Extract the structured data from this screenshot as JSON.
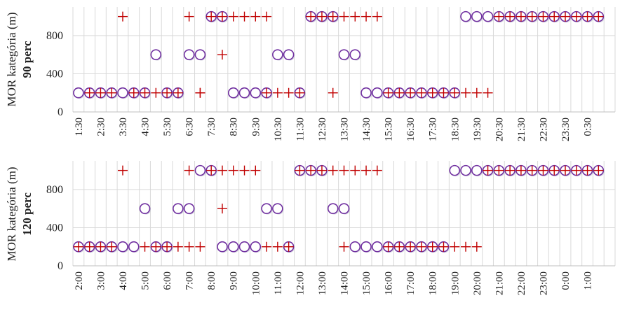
{
  "chart_data": [
    {
      "type": "scatter",
      "ylabel": "MOR kategória (m)",
      "ylabel2": "90 perc",
      "ylim": [
        0,
        1100
      ],
      "yticks": [
        0,
        400,
        800
      ],
      "grid": true,
      "xtick_labels": [
        "1:30",
        "2:30",
        "3:30",
        "4:30",
        "5:30",
        "6:30",
        "7:30",
        "8:30",
        "9:30",
        "10:30",
        "11:30",
        "12:30",
        "13:30",
        "14:30",
        "15:30",
        "16:30",
        "17:30",
        "18:30",
        "19:30",
        "20:30",
        "21:30",
        "22:30",
        "23:30",
        "0:30"
      ],
      "x_start": "1:30",
      "x_step_minutes": 30,
      "series": [
        {
          "marker": "circle",
          "color": "#7030a0",
          "x": [
            "1:30",
            "2:00",
            "2:30",
            "3:00",
            "3:30",
            "4:00",
            "4:30",
            "5:00",
            "5:30",
            "6:00",
            "6:30",
            "7:00",
            "7:30",
            "8:00",
            "8:30",
            "9:00",
            "9:30",
            "10:00",
            "10:30",
            "11:00",
            "11:30",
            "12:00",
            "12:30",
            "13:00",
            "13:30",
            "14:00",
            "14:30",
            "15:00",
            "15:30",
            "16:00",
            "16:30",
            "17:00",
            "17:30",
            "18:00",
            "18:30",
            "19:00",
            "19:30",
            "20:00",
            "20:30",
            "21:00",
            "21:30",
            "22:00",
            "22:30",
            "23:00",
            "23:30",
            "0:00",
            "0:30",
            "1:00"
          ],
          "y": [
            200,
            200,
            200,
            200,
            200,
            200,
            200,
            600,
            200,
            200,
            600,
            600,
            1000,
            1000,
            200,
            200,
            200,
            200,
            600,
            600,
            200,
            1000,
            1000,
            1000,
            600,
            600,
            200,
            200,
            200,
            200,
            200,
            200,
            200,
            200,
            200,
            1000,
            1000,
            1000,
            1000,
            1000,
            1000,
            1000,
            1000,
            1000,
            1000,
            1000,
            1000,
            1000
          ]
        },
        {
          "marker": "cross",
          "color": "#c00000",
          "x": [
            "2:00",
            "2:30",
            "3:00",
            "3:30",
            "4:00",
            "4:30",
            "5:00",
            "5:30",
            "6:00",
            "6:30",
            "7:00",
            "7:00",
            "7:30",
            "8:00",
            "8:00",
            "8:30",
            "9:00",
            "9:30",
            "10:00",
            "10:00",
            "10:30",
            "11:00",
            "11:30",
            "12:00",
            "12:30",
            "13:00",
            "13:00",
            "13:30",
            "14:00",
            "14:30",
            "15:00",
            "15:30",
            "16:00",
            "16:30",
            "17:00",
            "17:30",
            "18:00",
            "18:30",
            "19:00",
            "19:30",
            "20:00",
            "20:30",
            "21:00",
            "21:30",
            "22:00",
            "22:30",
            "23:00",
            "23:30",
            "0:00",
            "0:30",
            "1:00"
          ],
          "y": [
            200,
            200,
            200,
            1000,
            200,
            200,
            200,
            200,
            200,
            1000,
            200,
            200,
            1000,
            600,
            1000,
            1000,
            1000,
            1000,
            1000,
            200,
            200,
            200,
            200,
            1000,
            1000,
            200,
            1000,
            1000,
            1000,
            1000,
            1000,
            200,
            200,
            200,
            200,
            200,
            200,
            200,
            200,
            200,
            200,
            1000,
            1000,
            1000,
            1000,
            1000,
            1000,
            1000,
            1000,
            1000,
            1000
          ]
        }
      ]
    },
    {
      "type": "scatter",
      "ylabel": "MOR kategória (m)",
      "ylabel2": "120 perc",
      "ylim": [
        0,
        1100
      ],
      "yticks": [
        0,
        400,
        800
      ],
      "grid": true,
      "xtick_labels": [
        "2:00",
        "3:00",
        "4:00",
        "5:00",
        "6:00",
        "7:00",
        "8:00",
        "9:00",
        "10:00",
        "11:00",
        "12:00",
        "13:00",
        "14:00",
        "15:00",
        "16:00",
        "17:00",
        "18:00",
        "19:00",
        "20:00",
        "21:00",
        "22:00",
        "23:00",
        "0:00",
        "1:00"
      ],
      "x_start": "2:00",
      "x_step_minutes": 30,
      "series": [
        {
          "marker": "circle",
          "color": "#7030a0",
          "x": [
            "2:00",
            "2:30",
            "3:00",
            "3:30",
            "4:00",
            "4:30",
            "5:00",
            "5:30",
            "6:00",
            "6:30",
            "7:00",
            "7:30",
            "8:00",
            "8:30",
            "9:00",
            "9:30",
            "10:00",
            "10:30",
            "11:00",
            "11:30",
            "12:00",
            "12:30",
            "13:00",
            "13:30",
            "14:00",
            "14:30",
            "15:00",
            "15:30",
            "16:00",
            "16:30",
            "17:00",
            "17:30",
            "18:00",
            "18:30",
            "19:00",
            "19:30",
            "20:00",
            "20:30",
            "21:00",
            "21:30",
            "22:00",
            "22:30",
            "23:00",
            "23:30",
            "0:00",
            "0:30",
            "1:00",
            "1:30"
          ],
          "y": [
            200,
            200,
            200,
            200,
            200,
            200,
            600,
            200,
            200,
            600,
            600,
            1000,
            1000,
            200,
            200,
            200,
            200,
            600,
            600,
            200,
            1000,
            1000,
            1000,
            600,
            600,
            200,
            200,
            200,
            200,
            200,
            200,
            200,
            200,
            200,
            1000,
            1000,
            1000,
            1000,
            1000,
            1000,
            1000,
            1000,
            1000,
            1000,
            1000,
            1000,
            1000,
            1000
          ]
        },
        {
          "marker": "cross",
          "color": "#c00000",
          "x": [
            "2:00",
            "2:30",
            "3:00",
            "3:30",
            "4:00",
            "5:00",
            "5:30",
            "6:00",
            "6:30",
            "7:00",
            "7:00",
            "7:30",
            "8:00",
            "8:30",
            "8:30",
            "9:00",
            "9:30",
            "10:00",
            "10:30",
            "11:00",
            "11:30",
            "12:00",
            "12:30",
            "13:00",
            "13:30",
            "14:00",
            "14:00",
            "14:30",
            "15:00",
            "15:30",
            "16:00",
            "16:30",
            "17:00",
            "17:30",
            "18:00",
            "18:30",
            "19:00",
            "19:30",
            "20:00",
            "20:30",
            "21:00",
            "21:30",
            "22:00",
            "22:30",
            "23:00",
            "23:30",
            "0:00",
            "0:30",
            "1:00",
            "1:30"
          ],
          "y": [
            200,
            200,
            200,
            200,
            1000,
            200,
            200,
            200,
            200,
            1000,
            200,
            200,
            1000,
            600,
            1000,
            1000,
            1000,
            1000,
            200,
            200,
            200,
            1000,
            1000,
            1000,
            1000,
            1000,
            200,
            1000,
            1000,
            1000,
            200,
            200,
            200,
            200,
            200,
            200,
            200,
            200,
            200,
            1000,
            1000,
            1000,
            1000,
            1000,
            1000,
            1000,
            1000,
            1000,
            1000,
            1000
          ]
        }
      ]
    }
  ]
}
